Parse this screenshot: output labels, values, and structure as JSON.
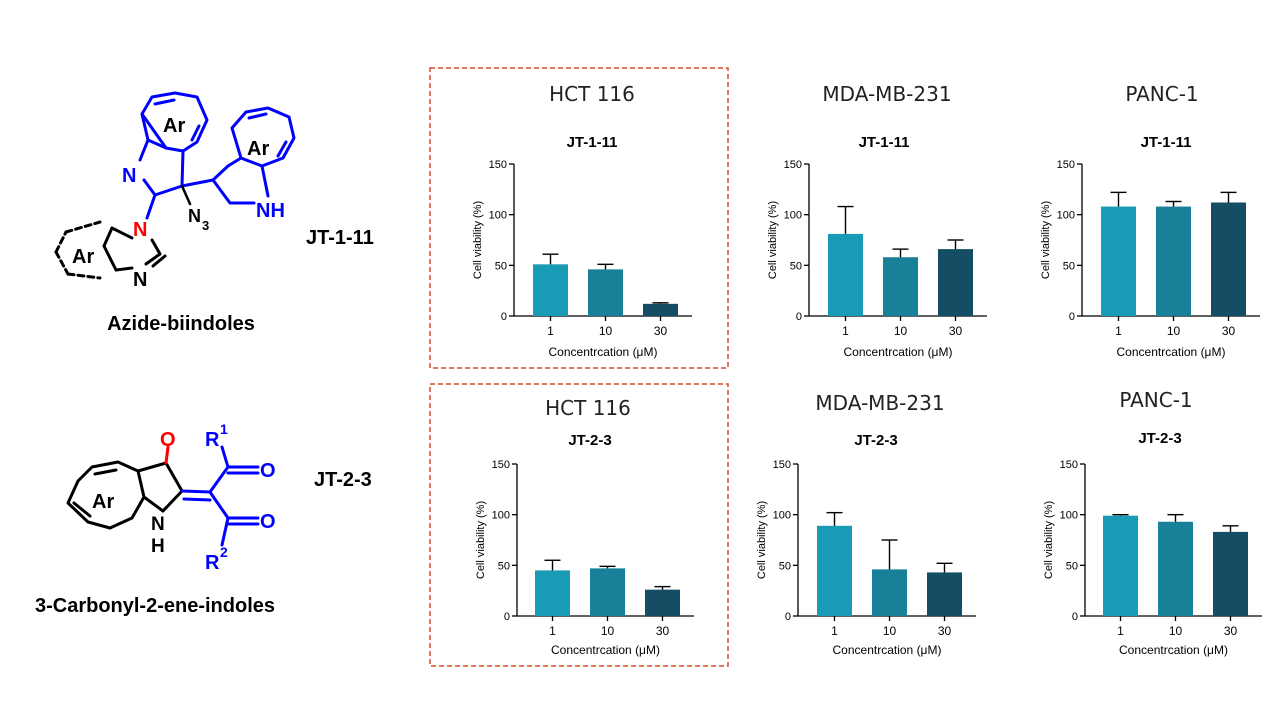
{
  "compounds": [
    {
      "code": "JT-1-11",
      "class_name": "Azide-biindoles"
    },
    {
      "code": "JT-2-3",
      "class_name": "3-Carbonyl-2-ene-indoles"
    }
  ],
  "structure_labels": {
    "ar": "Ar",
    "n": "N",
    "nh": "NH",
    "n3_main": "N",
    "n3_sub": "3",
    "o": "O",
    "h": "H",
    "r": "R",
    "r1_sup": "1",
    "r2_sup": "2"
  },
  "colors": {
    "bar_1": "#1a9bb5",
    "bar_10": "#19809a",
    "bar_30": "#154e64",
    "highlight_box": "#d94a2b",
    "scaffold_blue": "#0000ff",
    "heteroatom_red": "#ff0000"
  },
  "chart_data": [
    {
      "type": "bar",
      "cell_line": "HCT 116",
      "title": "JT-1-11",
      "highlighted": true,
      "categories": [
        "1",
        "10",
        "30"
      ],
      "values": [
        51,
        46,
        12
      ],
      "errors": [
        10,
        5,
        1
      ],
      "xlabel": "Concentrcation (μM)",
      "ylabel": "Cell viability (%)",
      "ylim": [
        0,
        150
      ],
      "yticks": [
        "0",
        "50",
        "100",
        "150"
      ]
    },
    {
      "type": "bar",
      "cell_line": "MDA-MB-231",
      "title": "JT-1-11",
      "highlighted": false,
      "categories": [
        "1",
        "10",
        "30"
      ],
      "values": [
        81,
        58,
        66
      ],
      "errors": [
        27,
        8,
        9
      ],
      "xlabel": "Concentrcation (μM)",
      "ylabel": "Cell viability (%)",
      "ylim": [
        0,
        150
      ],
      "yticks": [
        "0",
        "50",
        "100",
        "150"
      ]
    },
    {
      "type": "bar",
      "cell_line": "PANC-1",
      "title": "JT-1-11",
      "highlighted": false,
      "categories": [
        "1",
        "10",
        "30"
      ],
      "values": [
        108,
        108,
        112
      ],
      "errors": [
        14,
        5,
        10
      ],
      "xlabel": "Concentrcation (μM)",
      "ylabel": "Cell viability (%)",
      "ylim": [
        0,
        150
      ],
      "yticks": [
        "0",
        "50",
        "100",
        "150"
      ]
    },
    {
      "type": "bar",
      "cell_line": "HCT 116",
      "title": "JT-2-3",
      "highlighted": true,
      "categories": [
        "1",
        "10",
        "30"
      ],
      "values": [
        45,
        47,
        26
      ],
      "errors": [
        10,
        2,
        3
      ],
      "xlabel": "Concentrcation (μM)",
      "ylabel": "Cell viability (%)",
      "ylim": [
        0,
        150
      ],
      "yticks": [
        "0",
        "50",
        "100",
        "150"
      ]
    },
    {
      "type": "bar",
      "cell_line": "MDA-MB-231",
      "title": "JT-2-3",
      "highlighted": false,
      "categories": [
        "1",
        "10",
        "30"
      ],
      "values": [
        89,
        46,
        43
      ],
      "errors": [
        13,
        29,
        9
      ],
      "xlabel": "Concentrcation (μM)",
      "ylabel": "Cell viability (%)",
      "ylim": [
        0,
        150
      ],
      "yticks": [
        "0",
        "50",
        "100",
        "150"
      ]
    },
    {
      "type": "bar",
      "cell_line": "PANC-1",
      "title": "JT-2-3",
      "highlighted": false,
      "categories": [
        "1",
        "10",
        "30"
      ],
      "values": [
        99,
        93,
        83
      ],
      "errors": [
        1,
        7,
        6
      ],
      "xlabel": "Concentrcation (μM)",
      "ylabel": "Cell viability (%)",
      "ylim": [
        0,
        150
      ],
      "yticks": [
        "0",
        "50",
        "100",
        "150"
      ]
    }
  ]
}
